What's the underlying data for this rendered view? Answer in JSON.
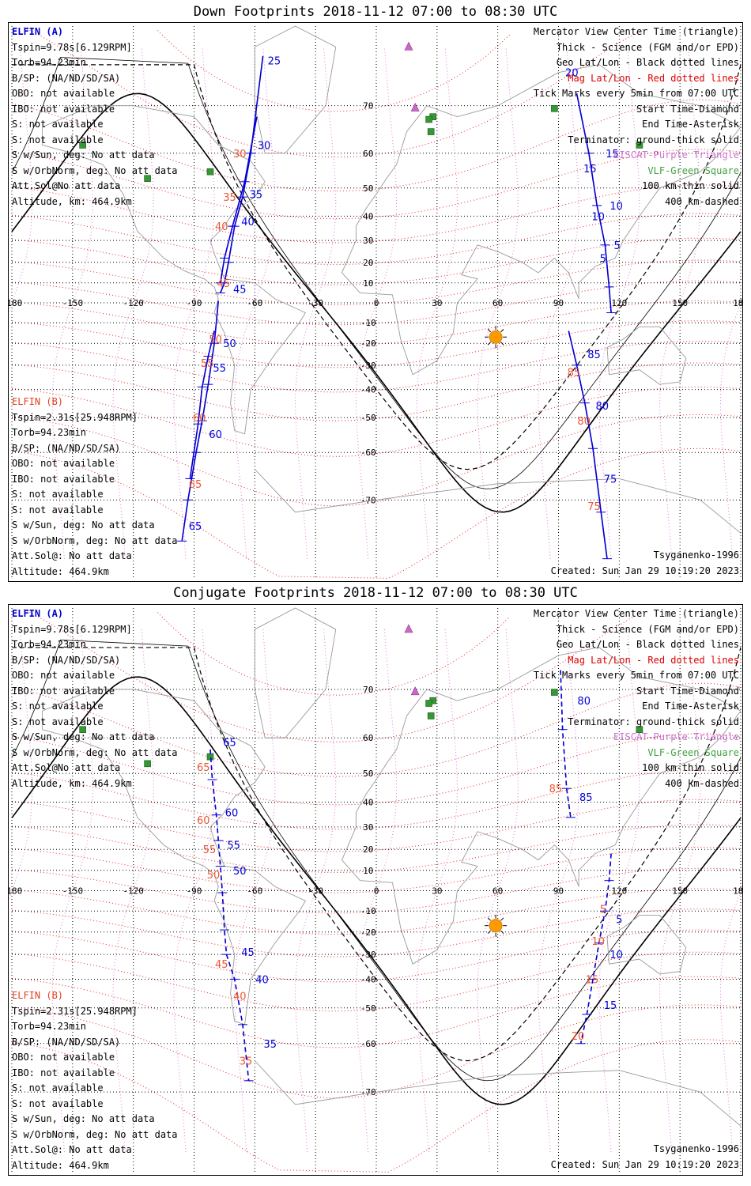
{
  "titles": {
    "down": "Down Footprints 2018-11-12 07:00 to 08:30 UTC",
    "conj": "Conjugate Footprints 2018-11-12 07:00 to 08:30 UTC"
  },
  "sat_a": {
    "name": "ELFIN (A)",
    "tspin": "Tspin=9.78s[6.129RPM]",
    "torb": "Torb=94.23min",
    "bsp": "B/SP: (NA/ND/SD/SA)",
    "obo": "OBO: not available",
    "ibo": "IBO: not available",
    "s1": "S: not available",
    "s2": "S: not available",
    "ssun": "S w/Sun, deg: No att data",
    "sorb": "S w/OrbNorm, deg: No att data",
    "attsol": "Att.Sol@No att data",
    "alt": "Altitude, km: 464.9km"
  },
  "sat_b": {
    "name": "ELFIN (B)",
    "tspin": "Tspin=2.31s[25.948RPM]",
    "torb": "Torb=94.23min",
    "bsp": "B/SP: (NA/ND/SD/SA)",
    "obo": "OBO: not available",
    "ibo": "IBO: not available",
    "s1": "S: not available",
    "s2": "S: not available",
    "ssun": "S w/Sun, deg: No att data",
    "sorb": "S w/OrbNorm, deg: No att data",
    "attsol": "Att.Sol@: No att data",
    "alt": "Altitude: 464.9km"
  },
  "legend": {
    "l1": "Mercator View Center Time (triangle)",
    "l2": "Thick - Science (FGM and/or EPD)",
    "l3": "Geo Lat/Lon - Black dotted lines",
    "l4": "Mag Lat/Lon - Red dotted lines",
    "l5": "Tick Marks every 5min from 07:00 UTC",
    "l6": "Start Time-Diamond",
    "l7": "End Time-Asterisk",
    "l8": "Terminator: ground-thick solid",
    "l9": "EISCAT-Purple Triangle",
    "l10": "VLF-Green Square",
    "l11": "100 km-thin solid",
    "l12": "400 km-dashed"
  },
  "footer": {
    "model": "Tsyganenko-1996",
    "created": "Created: Sun Jan 29 10:19:20 2023"
  },
  "axis": {
    "lon_ticks": [
      "-180",
      "-150",
      "-120",
      "-90",
      "-60",
      "-30",
      "0",
      "30",
      "60",
      "90",
      "120",
      "150",
      "180"
    ],
    "lat_ticks": [
      "70",
      "60",
      "50",
      "40",
      "30",
      "20",
      "10",
      "0",
      "-10",
      "-20",
      "-30",
      "-40",
      "-50",
      "-60",
      "-70"
    ]
  },
  "colors": {
    "elfin_a": "#0000dd",
    "elfin_b": "#ee5533",
    "geo_grid": "#000000",
    "mag_grid": "#ee2222",
    "eiscat": "#cc66cc",
    "vlf": "#339933",
    "sun": "#ff9900"
  },
  "map": {
    "lon_range": [
      -180,
      180
    ],
    "lat_range": [
      -75,
      75
    ],
    "eiscat_sites": [
      {
        "lon": 19.2,
        "lat": 69.6
      },
      {
        "lon": 16,
        "lat": 78
      }
    ],
    "vlf_sites": [
      {
        "lon": -145,
        "lat": 62
      },
      {
        "lon": -113,
        "lat": 53
      },
      {
        "lon": -82,
        "lat": 55
      },
      {
        "lon": 27,
        "lat": 65
      },
      {
        "lon": 28,
        "lat": 68
      },
      {
        "lon": 26,
        "lat": 67.5
      },
      {
        "lon": 88,
        "lat": 69.5
      },
      {
        "lon": 130,
        "lat": 62
      }
    ],
    "sun": {
      "lon": 59,
      "lat": -17
    }
  },
  "tracks": {
    "down": {
      "a_high": {
        "points": [
          [
            -56,
            77
          ],
          [
            -62,
            60
          ],
          [
            -66,
            47
          ],
          [
            -70,
            36
          ],
          [
            -73,
            20
          ],
          [
            -75,
            10
          ],
          [
            -77,
            5
          ]
        ],
        "labels": [
          {
            "t": "25",
            "lon": -56,
            "lat": 76.5
          },
          {
            "t": "30",
            "lon": -61,
            "lat": 62
          },
          {
            "t": "35",
            "lon": -65,
            "lat": 48
          },
          {
            "t": "40",
            "lon": -69,
            "lat": 38
          },
          {
            "t": "45",
            "lon": -73,
            "lat": 7
          }
        ]
      },
      "a_low": {
        "points": [
          [
            -78,
            1
          ],
          [
            -80,
            -20
          ],
          [
            -83,
            -38
          ],
          [
            -86,
            -51
          ],
          [
            -89,
            -60
          ],
          [
            -93,
            -70
          ],
          [
            -96,
            -76
          ]
        ],
        "labels": [
          {
            "t": "50",
            "lon": -78,
            "lat": -20
          },
          {
            "t": "55",
            "lon": -83,
            "lat": -31
          },
          {
            "t": "60",
            "lon": -85,
            "lat": -55
          },
          {
            "t": "65",
            "lon": -95,
            "lat": -74
          }
        ]
      },
      "b_high": {
        "points": [
          [
            -59,
            68
          ],
          [
            -65,
            52
          ],
          [
            -71,
            36
          ],
          [
            -75,
            22
          ],
          [
            -77,
            10
          ]
        ],
        "labels": [
          {
            "t": "30",
            "lon": -73,
            "lat": 60
          },
          {
            "t": "35",
            "lon": -78,
            "lat": 47
          },
          {
            "t": "40",
            "lon": -82,
            "lat": 36
          },
          {
            "t": "45",
            "lon": -81,
            "lat": 10
          }
        ]
      },
      "b_low": {
        "points": [
          [
            -80,
            -14
          ],
          [
            -83,
            -26
          ],
          [
            -86,
            -39
          ],
          [
            -88,
            -52
          ],
          [
            -92,
            -66
          ]
        ],
        "labels": [
          {
            "t": "50",
            "lon": -85,
            "lat": -18
          },
          {
            "t": "55",
            "lon": -89,
            "lat": -29
          },
          {
            "t": "60",
            "lon": -93,
            "lat": -50
          },
          {
            "t": "65",
            "lon": -95,
            "lat": -67
          }
        ]
      },
      "a_east": {
        "points": [
          [
            99,
            72
          ],
          [
            105,
            60
          ],
          [
            109,
            44
          ],
          [
            113,
            28
          ],
          [
            115,
            8
          ],
          [
            116,
            -5
          ]
        ],
        "labels": [
          {
            "t": "15",
            "lon": 111,
            "lat": 60
          },
          {
            "t": "10",
            "lon": 113,
            "lat": 44
          },
          {
            "t": "5",
            "lon": 115,
            "lat": 28
          }
        ]
      },
      "a_east_labels2": {
        "labels": [
          {
            "t": "20",
            "lon": 91,
            "lat": 75
          },
          {
            "t": "15",
            "lon": 100,
            "lat": 56
          },
          {
            "t": "10",
            "lon": 104,
            "lat": 40
          },
          {
            "t": "5",
            "lon": 108,
            "lat": 22
          }
        ]
      },
      "a_south": {
        "points": [
          [
            95,
            -14
          ],
          [
            99,
            -30
          ],
          [
            103,
            -45
          ],
          [
            107,
            -59
          ],
          [
            111,
            -72
          ],
          [
            114,
            -78
          ]
        ],
        "labels": [
          {
            "t": "85",
            "lon": 102,
            "lat": -25
          },
          {
            "t": "80",
            "lon": 106,
            "lat": -46
          },
          {
            "t": "75",
            "lon": 110,
            "lat": -66
          }
        ]
      },
      "b_south_labels": {
        "labels": [
          {
            "t": "85",
            "lon": 92,
            "lat": -33
          },
          {
            "t": "80",
            "lon": 97,
            "lat": -51
          },
          {
            "t": "75",
            "lon": 102,
            "lat": -71
          }
        ]
      }
    },
    "conj": {
      "a_west": {
        "points": [
          [
            -82,
            57
          ],
          [
            -81,
            48
          ],
          [
            -79,
            35
          ],
          [
            -78,
            24
          ],
          [
            -77,
            12
          ],
          [
            -76,
            -1
          ],
          [
            -75,
            -19
          ],
          [
            -74,
            -30
          ],
          [
            -70,
            -40
          ],
          [
            -66,
            -55
          ],
          [
            -63,
            -68
          ]
        ],
        "labels": [
          {
            "t": "65",
            "lon": -78,
            "lat": 59
          },
          {
            "t": "60",
            "lon": -77,
            "lat": 36
          },
          {
            "t": "55",
            "lon": -76,
            "lat": 22
          },
          {
            "t": "50",
            "lon": -73,
            "lat": 10
          },
          {
            "t": "45",
            "lon": -69,
            "lat": -29
          },
          {
            "t": "40",
            "lon": -62,
            "lat": -40
          },
          {
            "t": "35",
            "lon": -58,
            "lat": -60
          }
        ]
      },
      "b_labels": {
        "labels": [
          {
            "t": "65",
            "lon": -91,
            "lat": 52
          },
          {
            "t": "60",
            "lon": -91,
            "lat": 33
          },
          {
            "t": "55",
            "lon": -88,
            "lat": 20
          },
          {
            "t": "50",
            "lon": -86,
            "lat": 8
          },
          {
            "t": "45",
            "lon": -82,
            "lat": -34
          },
          {
            "t": "40",
            "lon": -73,
            "lat": -46
          },
          {
            "t": "35",
            "lon": -70,
            "lat": -64
          }
        ]
      },
      "a_east": {
        "points": [
          [
            91,
            73
          ],
          [
            92,
            62
          ],
          [
            94,
            45
          ],
          [
            96,
            34
          ]
        ],
        "labels": [
          {
            "t": "80",
            "lon": 97,
            "lat": 68
          },
          {
            "t": "85",
            "lon": 98,
            "lat": 42
          }
        ]
      },
      "b_east_labels": {
        "labels": [
          {
            "t": "85",
            "lon": 83,
            "lat": 45
          }
        ]
      },
      "a_east2": {
        "points": [
          [
            116,
            18
          ],
          [
            115,
            5
          ],
          [
            113,
            -10
          ],
          [
            110,
            -25
          ],
          [
            107,
            -40
          ],
          [
            104,
            -52
          ],
          [
            101,
            -60
          ]
        ],
        "labels": [
          {
            "t": "5",
            "lon": 116,
            "lat": -14
          },
          {
            "t": "10",
            "lon": 113,
            "lat": -30
          },
          {
            "t": "15",
            "lon": 110,
            "lat": -49
          }
        ]
      },
      "b_east2_labels": {
        "labels": [
          {
            "t": "5",
            "lon": 108,
            "lat": -9
          },
          {
            "t": "10",
            "lon": 104,
            "lat": -24
          },
          {
            "t": "15",
            "lon": 101,
            "lat": -40
          },
          {
            "t": "20",
            "lon": 94,
            "lat": -58
          }
        ]
      }
    }
  }
}
